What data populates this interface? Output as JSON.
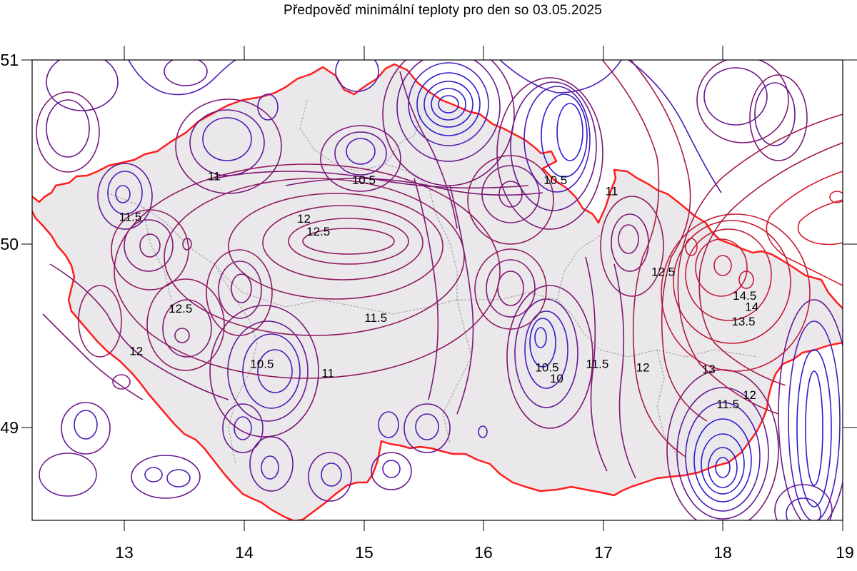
{
  "title": "Předpověď minimální teploty pro den so 03.05.2025",
  "map": {
    "x_ticks": [
      "13",
      "14",
      "15",
      "16",
      "17",
      "18",
      "19"
    ],
    "y_ticks": [
      "51",
      "50",
      "49"
    ],
    "contour_labels": [
      {
        "text": "11",
        "lon": 13.75,
        "lat": 50.37
      },
      {
        "text": "10.5",
        "lon": 15.0,
        "lat": 50.35
      },
      {
        "text": "10.5",
        "lon": 16.6,
        "lat": 50.35
      },
      {
        "text": "11",
        "lon": 17.07,
        "lat": 50.29
      },
      {
        "text": "11.5",
        "lon": 13.05,
        "lat": 50.15
      },
      {
        "text": "12",
        "lon": 14.5,
        "lat": 50.14
      },
      {
        "text": "12.5",
        "lon": 14.62,
        "lat": 50.07
      },
      {
        "text": "12.5",
        "lon": 17.5,
        "lat": 49.85
      },
      {
        "text": "14.5",
        "lon": 18.18,
        "lat": 49.72
      },
      {
        "text": "14",
        "lon": 18.24,
        "lat": 49.66
      },
      {
        "text": "13.5",
        "lon": 18.17,
        "lat": 49.58
      },
      {
        "text": "12.5",
        "lon": 13.47,
        "lat": 49.65
      },
      {
        "text": "11.5",
        "lon": 15.1,
        "lat": 49.6
      },
      {
        "text": "12",
        "lon": 13.1,
        "lat": 49.42
      },
      {
        "text": "10.5",
        "lon": 14.15,
        "lat": 49.35
      },
      {
        "text": "11",
        "lon": 14.7,
        "lat": 49.3
      },
      {
        "text": "10.5",
        "lon": 16.53,
        "lat": 49.33
      },
      {
        "text": "10",
        "lon": 16.61,
        "lat": 49.27
      },
      {
        "text": "11.5",
        "lon": 16.95,
        "lat": 49.35
      },
      {
        "text": "12",
        "lon": 17.33,
        "lat": 49.33
      },
      {
        "text": "13",
        "lon": 17.88,
        "lat": 49.32
      },
      {
        "text": "12",
        "lon": 18.22,
        "lat": 49.18
      },
      {
        "text": "11.5",
        "lon": 18.04,
        "lat": 49.13
      }
    ]
  }
}
